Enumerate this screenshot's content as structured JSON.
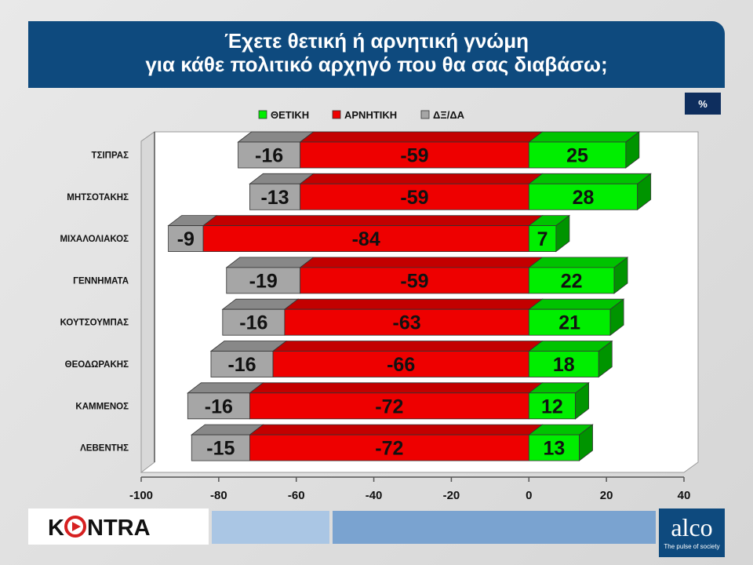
{
  "header": {
    "title_line1": "Έχετε θετική ή αρνητική γνώμη",
    "title_line2": "για κάθε πολιτικό αρχηγό που θα σας διαβάσω;",
    "unit": "%"
  },
  "chart_data": {
    "type": "bar",
    "orientation": "horizontal",
    "stacked": true,
    "categories": [
      "ΤΣΙΠΡΑΣ",
      "ΜΗΤΣΟΤΑΚΗΣ",
      "ΜΙΧΑΛΟΛΙΑΚΟΣ",
      "ΓΕΝΝΗΜΑΤΑ",
      "ΚΟΥΤΣΟΥΜΠΑΣ",
      "ΘΕΟΔΩΡΑΚΗΣ",
      "ΚΑΜΜΕΝΟΣ",
      "ΛΕΒΕΝΤΗΣ"
    ],
    "series": [
      {
        "name": "ΘΕΤΙΚΗ",
        "color": "#00ee00",
        "values": [
          25,
          28,
          7,
          22,
          21,
          18,
          12,
          13
        ]
      },
      {
        "name": "ΑΡΝΗΤΙΚΗ",
        "color": "#ee0000",
        "values": [
          -59,
          -59,
          -84,
          -59,
          -63,
          -66,
          -72,
          -72
        ]
      },
      {
        "name": "ΔΞ/ΔΑ",
        "color": "#a6a6a6",
        "values": [
          -16,
          -13,
          -9,
          -19,
          -16,
          -16,
          -16,
          -15
        ]
      }
    ],
    "xlim": [
      -100,
      40
    ],
    "xticks": [
      -100,
      -80,
      -60,
      -40,
      -20,
      0,
      20,
      40
    ],
    "legend_position": "top",
    "grid": false
  },
  "footer": {
    "brand_left": "KONTRA",
    "brand_right": "alco",
    "brand_right_tagline": "The pulse of society"
  }
}
